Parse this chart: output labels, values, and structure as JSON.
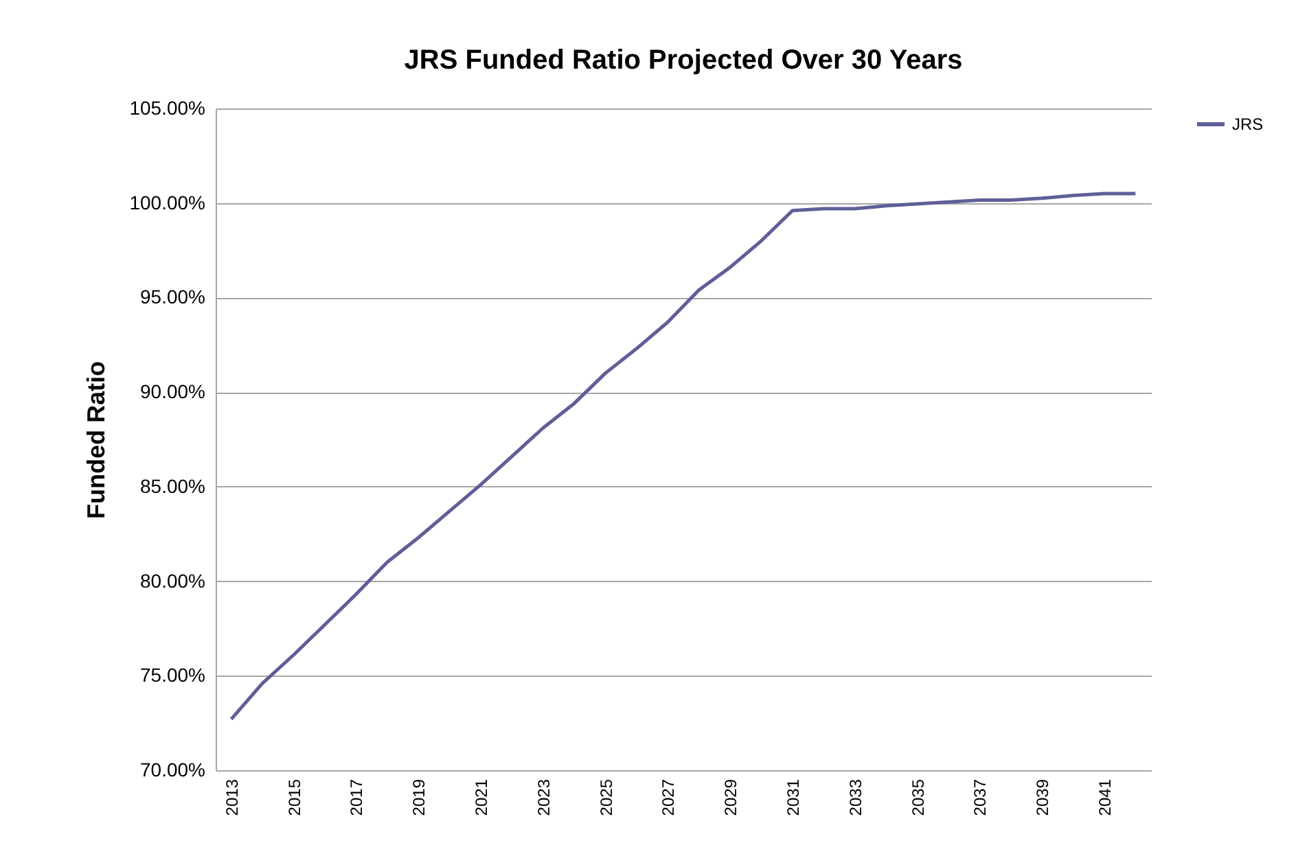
{
  "chart_data": {
    "type": "line",
    "title": "JRS Funded Ratio Projected Over 30 Years",
    "ylabel": "Funded Ratio",
    "categories": [
      "2013",
      null,
      "2015",
      null,
      "2017",
      null,
      "2019",
      null,
      "2021",
      null,
      "2023",
      null,
      "2025",
      null,
      "2027",
      null,
      "2029",
      null,
      "2031",
      null,
      "2033",
      null,
      "2035",
      null,
      "2037",
      null,
      "2039",
      null,
      "2041",
      null
    ],
    "series": [
      {
        "name": "JRS",
        "color": "#5f5f98",
        "values": [
          72.7,
          74.6,
          76.1,
          77.7,
          79.3,
          81.0,
          82.3,
          83.7,
          85.1,
          86.6,
          88.1,
          89.4,
          91.0,
          92.3,
          93.7,
          95.4,
          96.6,
          98.0,
          99.6,
          99.7,
          99.7,
          99.85,
          99.95,
          100.05,
          100.15,
          100.15,
          100.25,
          100.4,
          100.5,
          100.5
        ]
      }
    ],
    "ylim": [
      70,
      105
    ],
    "yticks": [
      {
        "value": 70,
        "label": "70.00%"
      },
      {
        "value": 75,
        "label": "75.00%"
      },
      {
        "value": 80,
        "label": "80.00%"
      },
      {
        "value": 85,
        "label": "85.00%"
      },
      {
        "value": 90,
        "label": "90.00%"
      },
      {
        "value": 95,
        "label": "95.00%"
      },
      {
        "value": 100,
        "label": "100.00%"
      },
      {
        "value": 105,
        "label": "105.00%"
      }
    ],
    "grid": "y",
    "legend": "right",
    "marker": "none",
    "line_style": "solid"
  }
}
